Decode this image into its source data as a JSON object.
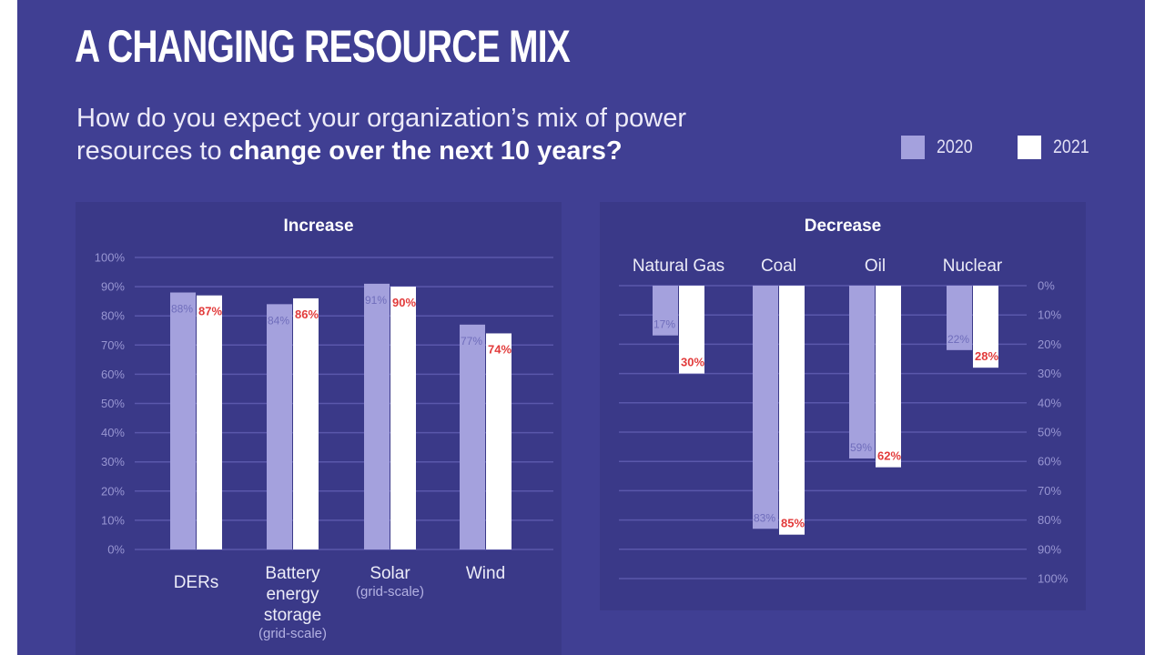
{
  "header": {
    "title": "A CHANGING RESOURCE MIX",
    "subtitle_line1": "How do you expect your organization’s mix of power",
    "subtitle_line2_plain": "resources to ",
    "subtitle_line2_bold": "change over the next 10 years?"
  },
  "legend": {
    "items": [
      {
        "label": "2020",
        "color": "#a4a1dd"
      },
      {
        "label": "2021",
        "color": "#ffffff"
      }
    ]
  },
  "colors": {
    "background": "#403f93",
    "panel": "#3a3988",
    "bar_2020": "#a4a1dd",
    "bar_2021": "#ffffff",
    "label_2020": "#6f6dbb",
    "label_2021": "#e23b3b",
    "gridline": "#5a58ab"
  },
  "chart_data": [
    {
      "type": "bar",
      "title": "Increase",
      "direction": "up",
      "axis_side": "left",
      "ylim": [
        0,
        100
      ],
      "yticks": [
        "0%",
        "10%",
        "20%",
        "30%",
        "40%",
        "50%",
        "60%",
        "70%",
        "80%",
        "90%",
        "100%"
      ],
      "grid": true,
      "categories": [
        {
          "label": [
            "DERs"
          ],
          "sub": ""
        },
        {
          "label": [
            "Battery",
            "energy",
            "storage"
          ],
          "sub": "(grid-scale)"
        },
        {
          "label": [
            "Solar"
          ],
          "sub": "(grid-scale)"
        },
        {
          "label": [
            "Wind"
          ],
          "sub": ""
        }
      ],
      "series": [
        {
          "name": "2020",
          "values": [
            88,
            84,
            91,
            77
          ]
        },
        {
          "name": "2021",
          "values": [
            87,
            86,
            90,
            74
          ]
        }
      ]
    },
    {
      "type": "bar",
      "title": "Decrease",
      "direction": "down",
      "axis_side": "right",
      "ylim": [
        0,
        100
      ],
      "yticks": [
        "0%",
        "10%",
        "20%",
        "30%",
        "40%",
        "50%",
        "60%",
        "70%",
        "80%",
        "90%",
        "100%"
      ],
      "grid": true,
      "categories": [
        {
          "label": [
            "Natural Gas"
          ],
          "sub": ""
        },
        {
          "label": [
            "Coal"
          ],
          "sub": ""
        },
        {
          "label": [
            "Oil"
          ],
          "sub": ""
        },
        {
          "label": [
            "Nuclear"
          ],
          "sub": ""
        }
      ],
      "series": [
        {
          "name": "2020",
          "values": [
            17,
            83,
            59,
            22
          ]
        },
        {
          "name": "2021",
          "values": [
            30,
            85,
            62,
            28
          ]
        }
      ]
    }
  ]
}
